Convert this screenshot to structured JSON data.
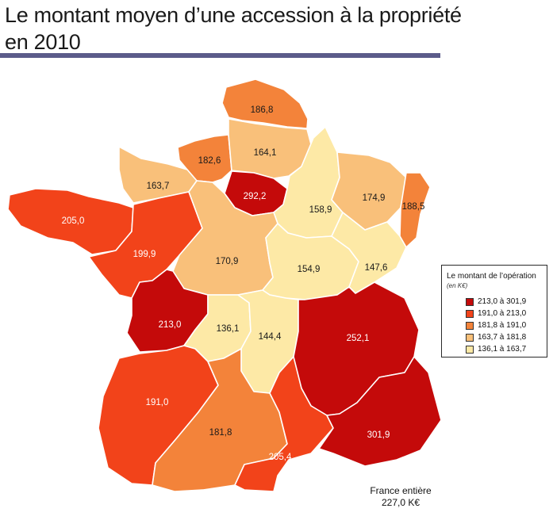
{
  "title_line1": "Le montant moyen d’une accession à la propriété",
  "title_line2": "en 2010",
  "colors": {
    "class1": "#c40a0a",
    "class2": "#f2431a",
    "class3": "#f3833a",
    "class4": "#f9c07a",
    "class5": "#fde9a6",
    "title_rule": "#5b5b8a"
  },
  "legend": {
    "title": "Le montant de l’opération",
    "unit": "(en K€)",
    "classes": [
      {
        "label": "213,0 à 301,9",
        "color": "#c40a0a"
      },
      {
        "label": "191,0 à 213,0",
        "color": "#f2431a"
      },
      {
        "label": "181,8 à 191,0",
        "color": "#f3833a"
      },
      {
        "label": "163,7 à 181,8",
        "color": "#f9c07a"
      },
      {
        "label": "136,1 à 163,7",
        "color": "#fde9a6"
      }
    ]
  },
  "regions": [
    {
      "value": "186,8",
      "class": 3
    },
    {
      "value": "182,6",
      "class": 3
    },
    {
      "value": "164,1",
      "class": 4
    },
    {
      "value": "163,7",
      "class": 4
    },
    {
      "value": "292,2",
      "class": 1
    },
    {
      "value": "158,9",
      "class": 5
    },
    {
      "value": "174,9",
      "class": 4
    },
    {
      "value": "188,5",
      "class": 3
    },
    {
      "value": "205,0",
      "class": 2
    },
    {
      "value": "199,9",
      "class": 2
    },
    {
      "value": "170,9",
      "class": 4
    },
    {
      "value": "154,9",
      "class": 5
    },
    {
      "value": "147,6",
      "class": 5
    },
    {
      "value": "213,0",
      "class": 1
    },
    {
      "value": "136,1",
      "class": 5
    },
    {
      "value": "144,4",
      "class": 5
    },
    {
      "value": "252,1",
      "class": 1
    },
    {
      "value": "191,0",
      "class": 2
    },
    {
      "value": "181,8",
      "class": 3
    },
    {
      "value": "205,4",
      "class": 2
    },
    {
      "value": "301,9",
      "class": 1
    }
  ],
  "total": {
    "line1": "France entière",
    "line2": "227,0 K€"
  }
}
